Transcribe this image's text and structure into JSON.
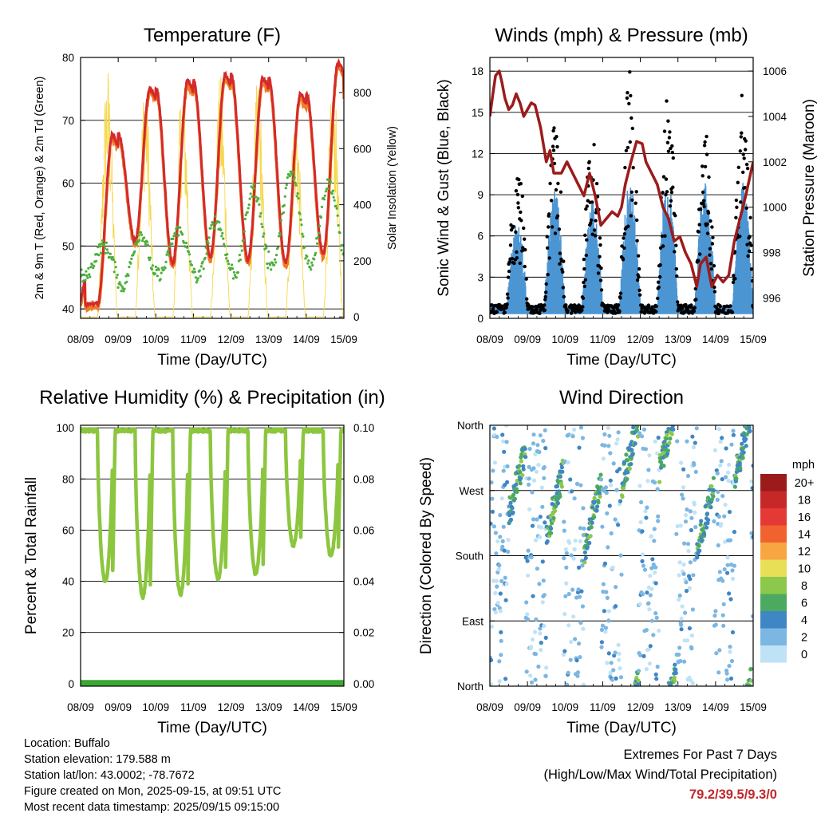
{
  "chart_data": [
    {
      "id": "temperature",
      "type": "line",
      "title": "Temperature (F)",
      "xlabel": "Time (Day/UTC)",
      "ylabel": "2m & 9m T (Red, Orange) & 2m Td (Green)",
      "y2label": "Solar Insolation (Yellow)",
      "xticks": [
        "08/09",
        "09/09",
        "10/09",
        "11/09",
        "12/09",
        "13/09",
        "14/09",
        "15/09"
      ],
      "ylim": [
        38.5,
        80
      ],
      "yticks": [
        40,
        50,
        60,
        70,
        80
      ],
      "y2lim": [
        -5,
        925
      ],
      "y2ticks": [
        0,
        200,
        400,
        600,
        800
      ],
      "grid": true,
      "colors": {
        "t2m": "#d42a2a",
        "t9m": "#f07b28",
        "td2m": "#4caf3c",
        "solar": "#f6d84b"
      },
      "daily_max_t": [
        67.5,
        75.0,
        76.0,
        77.0,
        76.5,
        74.0,
        79.0
      ],
      "daily_min_t": [
        40.5,
        50.5,
        47.0,
        48.0,
        47.5,
        47.0,
        48.5
      ],
      "daily_max_td": [
        50.0,
        52.0,
        52.5,
        54.0,
        59.0,
        61.5,
        60.0
      ],
      "daily_min_td": [
        45.0,
        43.5,
        45.5,
        45.0,
        45.5,
        47.0,
        47.0
      ],
      "daily_peak_solar": [
        910,
        880,
        875,
        870,
        860,
        780,
        870
      ]
    },
    {
      "id": "winds",
      "type": "scatter",
      "title": "Winds (mph) & Pressure (mb)",
      "xlabel": "Time (Day/UTC)",
      "ylabel": "Sonic Wind & Gust (Blue, Black)",
      "y2label": "Station Pressure (Maroon)",
      "xticks": [
        "08/09",
        "09/09",
        "10/09",
        "11/09",
        "12/09",
        "13/09",
        "14/09",
        "15/09"
      ],
      "ylim": [
        0,
        19
      ],
      "yticks": [
        0,
        3,
        6,
        9,
        12,
        15,
        18
      ],
      "y2lim": [
        995.1,
        1006.6
      ],
      "y2ticks": [
        996,
        998,
        1000,
        1002,
        1004,
        1006
      ],
      "grid": true,
      "colors": {
        "wind": "#4b95d3",
        "gust": "#000000",
        "pressure": "#9b1c1c"
      },
      "daily_peak_wind": [
        6.0,
        8.5,
        7.5,
        9.0,
        9.3,
        9.0,
        9.0
      ],
      "daily_peak_gust": [
        11.5,
        13.5,
        13.0,
        17.0,
        16.5,
        13.0,
        16.0
      ],
      "pressure_series": {
        "x": [
          0.0,
          0.08,
          0.15,
          0.25,
          0.32,
          0.4,
          0.5,
          0.6,
          0.7,
          0.8,
          0.9,
          1.0,
          1.1,
          1.2,
          1.35,
          1.5,
          1.6,
          1.7,
          1.9,
          2.05,
          2.2,
          2.35,
          2.5,
          2.65,
          2.8,
          2.95,
          3.1,
          3.25,
          3.4,
          3.5,
          3.6,
          3.75,
          3.9,
          4.05,
          4.15,
          4.3,
          4.45,
          4.6,
          4.75,
          4.9,
          5.05,
          5.2,
          5.35,
          5.5,
          5.6,
          5.75,
          5.9,
          6.05,
          6.2,
          6.35,
          6.5,
          6.65,
          6.8,
          7.0
        ],
        "y": [
          1004.0,
          1005.0,
          1005.8,
          1006.0,
          1005.5,
          1004.8,
          1004.3,
          1004.5,
          1005.0,
          1004.6,
          1004.0,
          1004.3,
          1004.6,
          1004.5,
          1003.5,
          1002.0,
          1002.5,
          1001.5,
          1001.5,
          1002.0,
          1001.5,
          1001.0,
          1000.5,
          1001.5,
          1000.5,
          999.2,
          999.5,
          999.8,
          999.6,
          1000.0,
          1001.0,
          1002.0,
          1002.9,
          1002.8,
          1002.0,
          1001.5,
          1001.0,
          1000.0,
          999.5,
          998.5,
          998.7,
          998.0,
          997.5,
          996.5,
          997.5,
          997.8,
          996.5,
          997.0,
          996.7,
          997.0,
          998.5,
          999.5,
          1000.5,
          1002.0
        ]
      }
    },
    {
      "id": "humidity",
      "type": "line",
      "title": "Relative Humidity (%) & Precipitation (in)",
      "xlabel": "Time (Day/UTC)",
      "ylabel": "Percent & Total Rainfall",
      "xticks": [
        "08/09",
        "09/09",
        "10/09",
        "11/09",
        "12/09",
        "13/09",
        "14/09",
        "15/09"
      ],
      "ylim": [
        -1,
        101
      ],
      "yticks": [
        0,
        20,
        40,
        60,
        80,
        100
      ],
      "y2ticks": [
        "0.00",
        "0.02",
        "0.04",
        "0.06",
        "0.08",
        "0.10"
      ],
      "grid": true,
      "colors": {
        "rh": "#8cc63f",
        "precip": "#3aa832"
      },
      "daily_min_rh": [
        40,
        34,
        35,
        41,
        43,
        54,
        50
      ],
      "total_precip_in": 0.0
    },
    {
      "id": "wind_direction",
      "type": "scatter",
      "title": "Wind Direction",
      "xlabel": "Time (Day/UTC)",
      "ylabel": "Direction (Colored By Speed)",
      "xticks": [
        "08/09",
        "09/09",
        "10/09",
        "11/09",
        "12/09",
        "13/09",
        "14/09",
        "15/09"
      ],
      "yticks": [
        "North",
        "East",
        "South",
        "West",
        "North"
      ],
      "ylim": [
        0,
        360
      ],
      "grid": true,
      "colorbar": {
        "title": "mph",
        "labels": [
          "20+",
          "18",
          "16",
          "14",
          "12",
          "10",
          "8",
          "6",
          "4",
          "2",
          "0"
        ],
        "colors": [
          "#9b1b1b",
          "#c62828",
          "#e53935",
          "#f0632e",
          "#f7a642",
          "#e8df57",
          "#8cc84b",
          "#4caa60",
          "#3f86c4",
          "#7cb6e2",
          "#bfe2f6"
        ]
      }
    }
  ],
  "footer": {
    "location": "Location: Buffalo",
    "elevation": "Station elevation: 179.588 m",
    "latlon": "Station lat/lon: 43.0002; -78.7672",
    "created": "Figure created on Mon, 2025-09-15, at 09:51 UTC",
    "recent": "Most recent data timestamp: 2025/09/15 09:15:00"
  },
  "extremes": {
    "title": "Extremes For Past 7 Days",
    "subtitle": "(High/Low/Max Wind/Total Precipitation)",
    "values": "79.2/39.5/9.3/0",
    "color": "#c0282b"
  }
}
